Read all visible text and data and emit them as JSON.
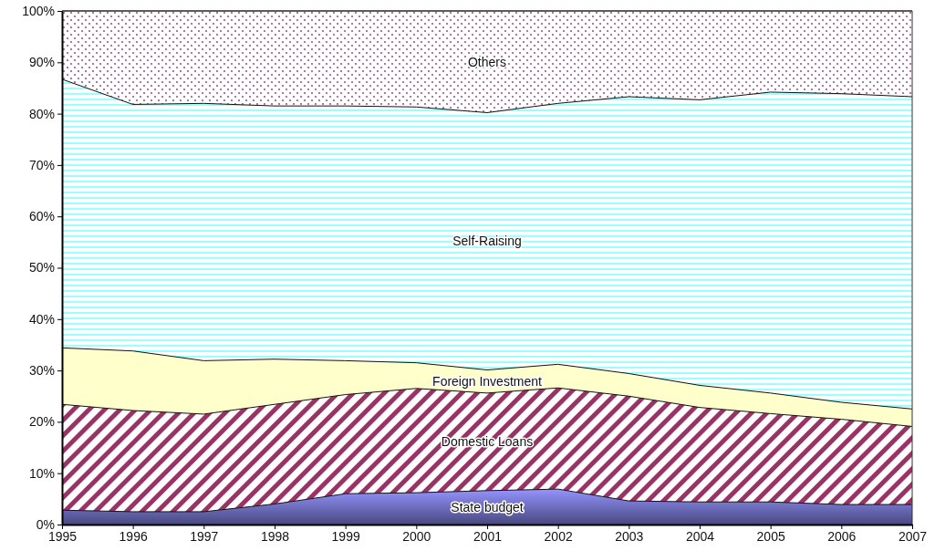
{
  "chart_data": {
    "type": "area",
    "stacked": true,
    "x": [
      1995,
      1996,
      1997,
      1998,
      1999,
      2000,
      2001,
      2002,
      2003,
      2004,
      2005,
      2006,
      2007
    ],
    "xlim": [
      1995,
      2007
    ],
    "xticks": [
      1995,
      1996,
      1997,
      1998,
      1999,
      2000,
      2001,
      2002,
      2003,
      2004,
      2005,
      2006,
      2007
    ],
    "ylim": [
      0,
      100
    ],
    "yticks": [
      {
        "value": 0,
        "label": "0%"
      },
      {
        "value": 10,
        "label": "10%"
      },
      {
        "value": 20,
        "label": "20%"
      },
      {
        "value": 30,
        "label": "30%"
      },
      {
        "value": 40,
        "label": "40%"
      },
      {
        "value": 50,
        "label": "50%"
      },
      {
        "value": 60,
        "label": "60%"
      },
      {
        "value": 70,
        "label": "70%"
      },
      {
        "value": 80,
        "label": "80%"
      },
      {
        "value": 90,
        "label": "90%"
      },
      {
        "value": 100,
        "label": "100%"
      }
    ],
    "series": [
      {
        "name": "State budget",
        "color": "#8080e0",
        "values": [
          2.8,
          2.5,
          2.5,
          4.0,
          6.0,
          6.2,
          6.6,
          6.9,
          4.6,
          4.4,
          4.4,
          3.9,
          3.9
        ]
      },
      {
        "name": "Domestic Loans",
        "color": "#993366",
        "values": [
          20.6,
          19.7,
          19.0,
          19.4,
          19.3,
          20.3,
          19.0,
          19.7,
          20.4,
          18.4,
          17.2,
          16.6,
          15.2
        ]
      },
      {
        "name": "Foreign Investment",
        "color": "#ffffcc",
        "values": [
          11.0,
          11.6,
          10.4,
          8.8,
          6.6,
          5.0,
          4.5,
          4.6,
          4.4,
          4.3,
          4.0,
          3.3,
          3.4
        ]
      },
      {
        "name": "Self-Raising",
        "color": "#99ffff",
        "values": [
          52.3,
          48.0,
          50.1,
          49.3,
          49.6,
          49.8,
          50.1,
          50.8,
          53.9,
          55.6,
          58.6,
          60.1,
          60.8
        ]
      },
      {
        "name": "Others",
        "color": "#993366",
        "values": [
          13.3,
          18.2,
          18.0,
          18.5,
          18.5,
          18.7,
          19.8,
          18.0,
          16.7,
          17.3,
          15.8,
          16.1,
          16.7
        ]
      }
    ]
  }
}
